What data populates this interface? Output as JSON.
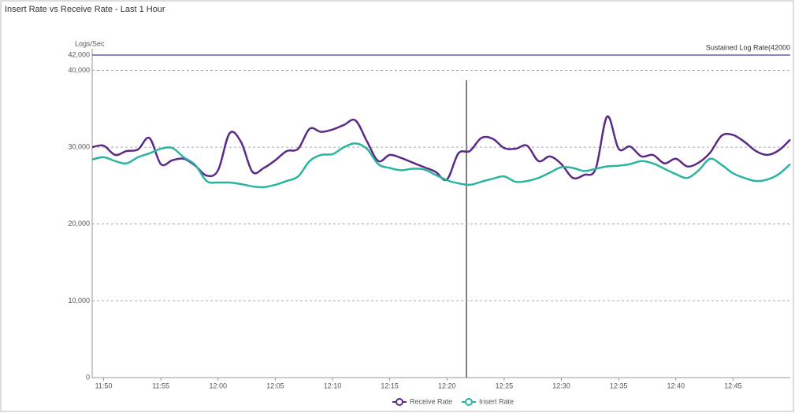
{
  "chart_data": {
    "type": "line",
    "title": "Insert Rate vs Receive Rate - Last 1 Hour",
    "y_label": "Logs/Sec",
    "threshold": {
      "label": "Sustained Log Rate(42000",
      "value": 42000,
      "color": "#6b5ba8"
    },
    "x": [
      "11:49",
      "11:50",
      "11:51",
      "11:52",
      "11:53",
      "11:54",
      "11:55",
      "11:56",
      "11:57",
      "11:58",
      "11:59",
      "12:00",
      "12:01",
      "12:02",
      "12:03",
      "12:04",
      "12:05",
      "12:06",
      "12:07",
      "12:08",
      "12:09",
      "12:10",
      "12:11",
      "12:12",
      "12:13",
      "12:14",
      "12:15",
      "12:16",
      "12:17",
      "12:18",
      "12:19",
      "12:20",
      "12:21",
      "12:22",
      "12:23",
      "12:24",
      "12:25",
      "12:26",
      "12:27",
      "12:28",
      "12:29",
      "12:30",
      "12:31",
      "12:32",
      "12:33",
      "12:34",
      "12:35",
      "12:36",
      "12:37",
      "12:38",
      "12:39",
      "12:40",
      "12:41",
      "12:42",
      "12:43",
      "12:44",
      "12:45",
      "12:46",
      "12:47",
      "12:48",
      "12:49",
      "12:50"
    ],
    "xlim": [
      "11:49",
      "12:50"
    ],
    "xticks": [
      "11:50",
      "11:55",
      "12:00",
      "12:05",
      "12:10",
      "12:15",
      "12:20",
      "12:25",
      "12:30",
      "12:35",
      "12:40",
      "12:45"
    ],
    "ylim": [
      0,
      42000
    ],
    "yticks": [
      0,
      {
        "value": 10000,
        "label": "10,000"
      },
      {
        "value": 20000,
        "label": "20,000"
      },
      {
        "value": 30000,
        "label": "30,000"
      },
      {
        "value": 40000,
        "label": "40,000"
      },
      {
        "value": 42000,
        "label": "42,000"
      }
    ],
    "grid": true,
    "series": [
      {
        "name": "Receive Rate",
        "color": "#5b2a86",
        "values": [
          30000,
          30200,
          29000,
          29500,
          29700,
          31200,
          27800,
          28300,
          28500,
          27600,
          26300,
          27000,
          31800,
          30700,
          26800,
          27300,
          28300,
          29500,
          29800,
          32400,
          32000,
          32300,
          32900,
          33500,
          30800,
          28200,
          29000,
          28600,
          28000,
          27400,
          26800,
          25800,
          29200,
          29500,
          31200,
          31100,
          29900,
          29800,
          30200,
          28200,
          28800,
          27800,
          26000,
          26400,
          27200,
          34000,
          29800,
          30100,
          28800,
          29000,
          27900,
          28500,
          27500,
          28000,
          29300,
          31500,
          31600,
          30700,
          29500,
          29000,
          29600,
          31000
        ]
      },
      {
        "name": "Insert Rate",
        "color": "#2ab5a0",
        "values": [
          28400,
          28700,
          28200,
          27900,
          28700,
          29200,
          29800,
          29900,
          28700,
          27700,
          25600,
          25400,
          25400,
          25200,
          24900,
          24800,
          25100,
          25600,
          26200,
          28200,
          29000,
          29100,
          30000,
          30500,
          29800,
          27800,
          27300,
          27000,
          27200,
          27100,
          26400,
          25700,
          25300,
          25100,
          25500,
          25900,
          26200,
          25500,
          25600,
          26000,
          26700,
          27400,
          27300,
          26900,
          27200,
          27500,
          27600,
          27800,
          28200,
          27900,
          27200,
          26500,
          26000,
          27000,
          28500,
          27700,
          26600,
          26000,
          25600,
          25800,
          26500,
          27800
        ]
      }
    ]
  }
}
